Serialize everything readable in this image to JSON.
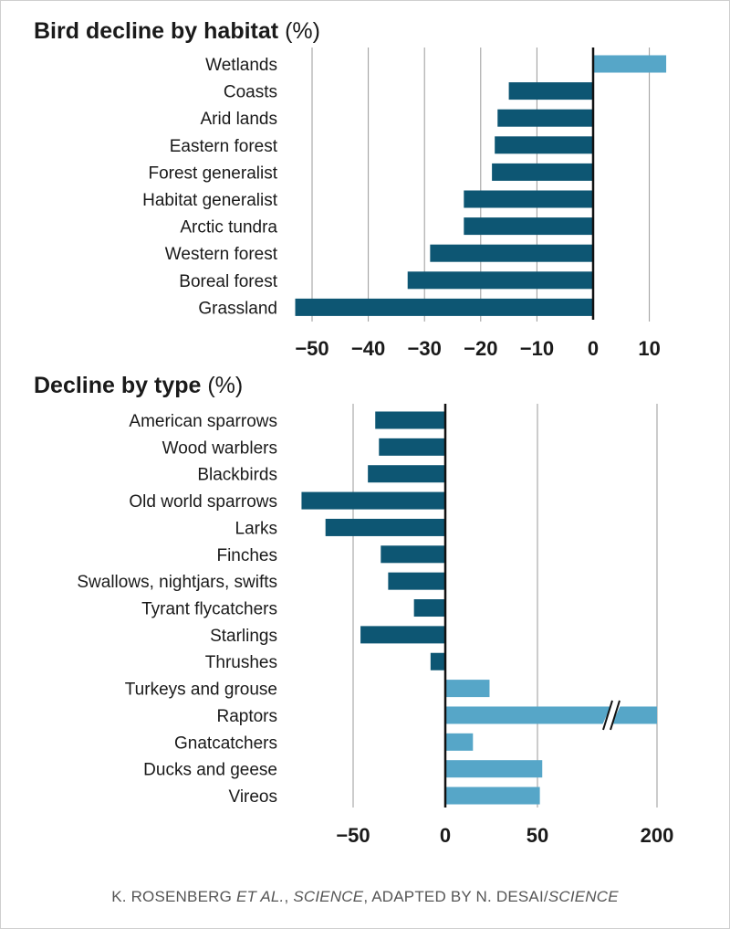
{
  "chart_data": [
    {
      "type": "bar",
      "orientation": "horizontal",
      "title": "Bird decline by habitat",
      "title_unit": "(%)",
      "categories": [
        "Wetlands",
        "Coasts",
        "Arid lands",
        "Eastern forest",
        "Forest generalist",
        "Habitat generalist",
        "Arctic tundra",
        "Western forest",
        "Boreal forest",
        "Grassland"
      ],
      "values": [
        13,
        -15,
        -17,
        -17.5,
        -18,
        -23,
        -23,
        -29,
        -33,
        -53
      ],
      "xlim": [
        -55,
        15
      ],
      "xticks": [
        -50,
        -40,
        -30,
        -20,
        -10,
        0,
        10
      ],
      "xtick_labels": [
        "−50",
        "−40",
        "−30",
        "−20",
        "−10",
        "0",
        "10"
      ],
      "grid": true,
      "colors": {
        "negative": "#0d5673",
        "positive": "#56a6c8"
      }
    },
    {
      "type": "bar",
      "orientation": "horizontal",
      "title": "Decline by type",
      "title_unit": "(%)",
      "categories": [
        "American sparrows",
        "Wood warblers",
        "Blackbirds",
        "Old world sparrows",
        "Larks",
        "Finches",
        "Swallows, nightjars, swifts",
        "Tyrant flycatchers",
        "Starlings",
        "Thrushes",
        "Turkeys and grouse",
        "Raptors",
        "Gnatcatchers",
        "Ducks and geese",
        "Vireos"
      ],
      "values": [
        -38,
        -36,
        -42,
        -78,
        -65,
        -35,
        -31,
        -17,
        -46,
        -8,
        24,
        200,
        15,
        56,
        53
      ],
      "xticks": [
        -50,
        0,
        50,
        200
      ],
      "xtick_labels": [
        "−50",
        "0",
        "50",
        "200"
      ],
      "axis_break": true,
      "grid": true,
      "colors": {
        "negative": "#0d5673",
        "positive": "#56a6c8"
      }
    }
  ],
  "credit": {
    "part1": "K. ROSENBERG ",
    "part2": "ET AL.",
    "part3": ", ",
    "part4": "SCIENCE",
    "part5": ", ADAPTED BY N. DESAI/",
    "part6": "SCIENCE"
  }
}
